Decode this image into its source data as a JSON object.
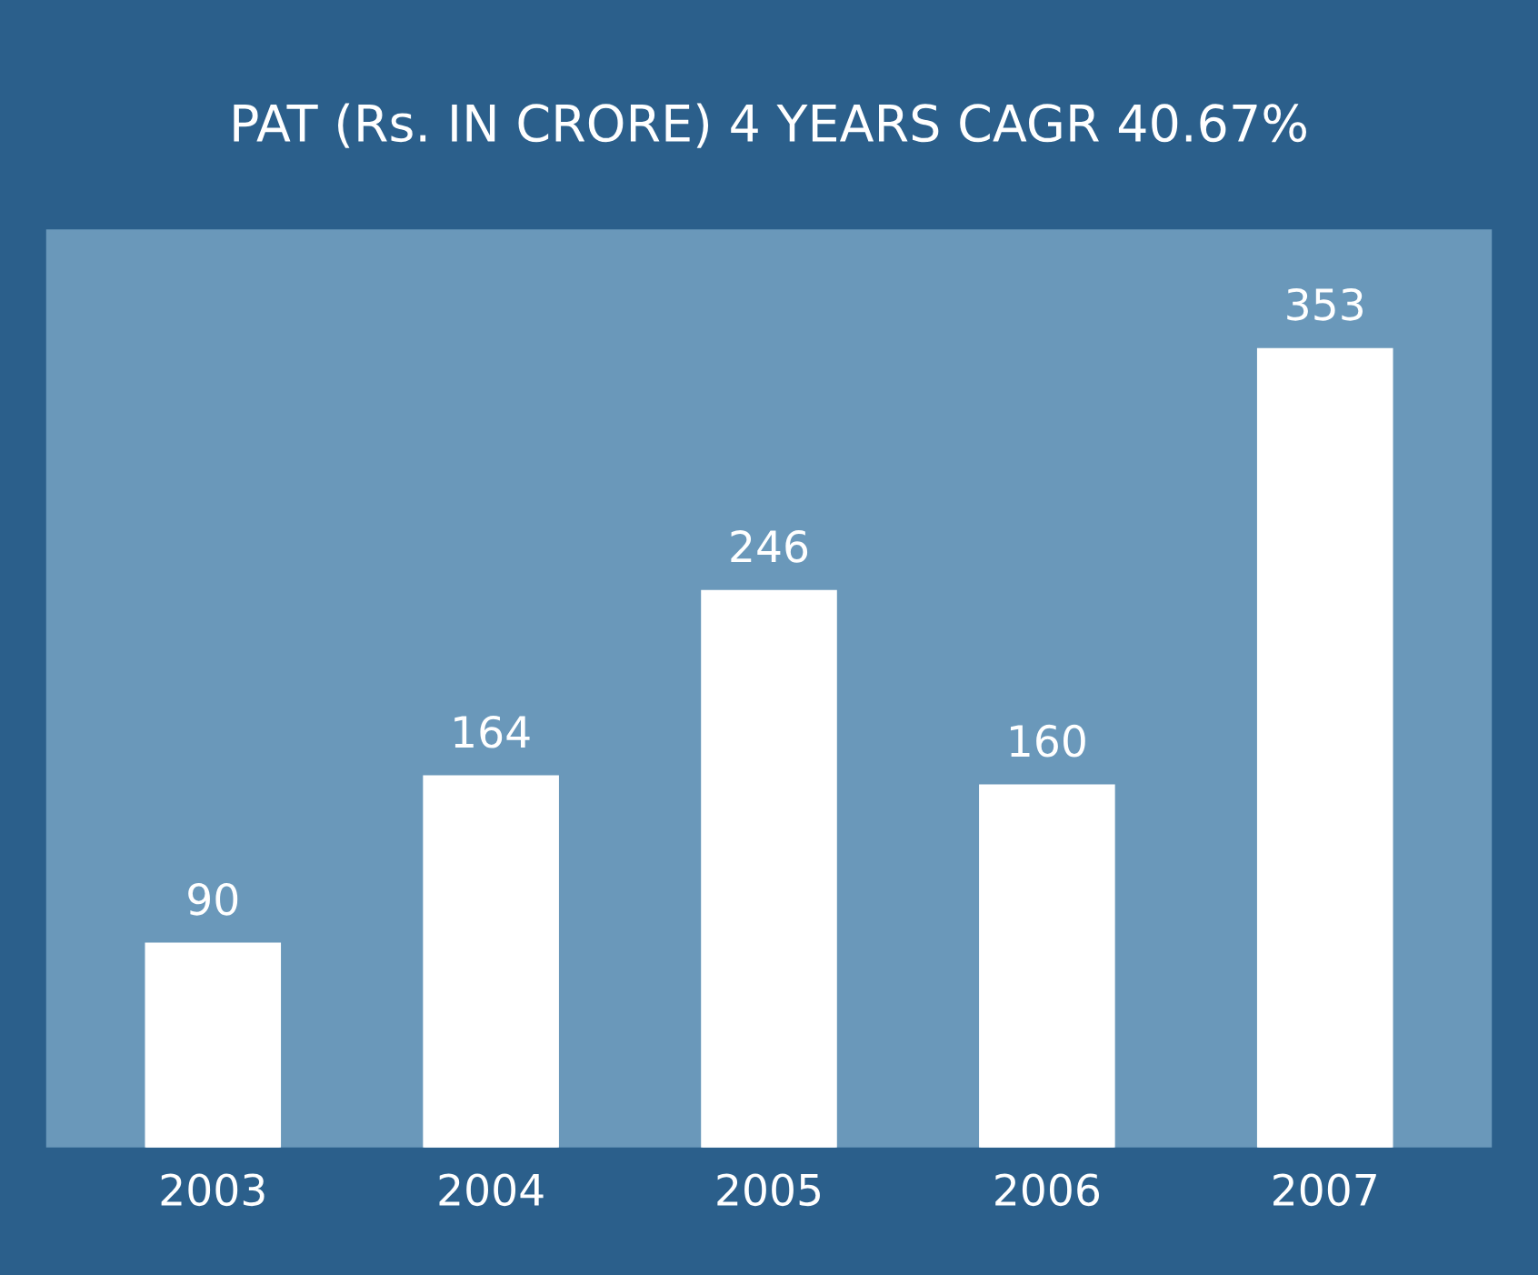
{
  "chart_data": {
    "type": "bar",
    "title": "PAT (Rs. IN CRORE) 4 YEARS CAGR 40.67%",
    "categories": [
      "2003",
      "2004",
      "2005",
      "2006",
      "2007"
    ],
    "values": [
      90,
      164,
      246,
      160,
      353
    ],
    "color": "#ffffff",
    "data_labels": true,
    "grid": false,
    "legend": false
  }
}
